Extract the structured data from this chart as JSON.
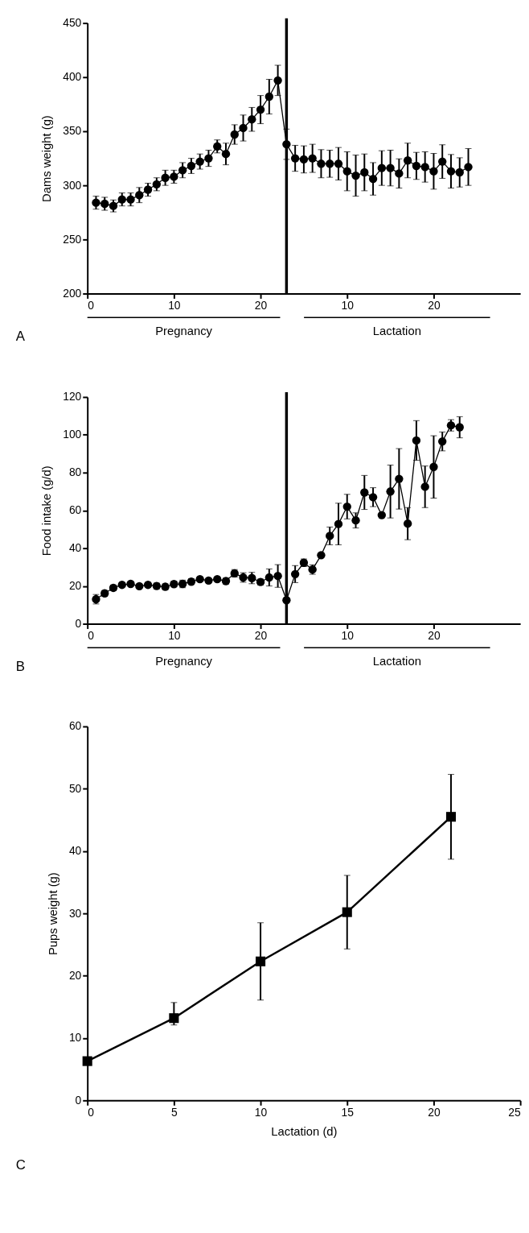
{
  "chart_data": [
    {
      "type": "line",
      "ylabel": "Dams weight (g)",
      "annotations": [
        "Pregnancy",
        "Lactation",
        "A"
      ],
      "x": [
        1,
        2,
        3,
        4,
        5,
        6,
        7,
        8,
        9,
        10,
        11,
        12,
        13,
        14,
        15,
        16,
        17,
        18,
        19,
        20,
        21,
        22,
        23,
        24,
        25,
        26,
        27,
        28,
        29,
        30,
        31,
        32,
        33,
        34,
        35,
        36,
        37,
        38,
        39,
        40,
        41,
        42,
        43,
        44
      ],
      "series": [
        {
          "color": "#000000",
          "values": [
            284,
            283,
            281,
            287,
            287,
            291,
            296,
            301,
            307,
            308,
            314,
            318,
            322,
            325,
            336,
            329,
            347,
            353,
            361,
            370,
            382,
            397,
            338,
            325,
            324,
            325,
            320,
            320,
            320,
            313,
            309,
            312,
            306,
            316,
            316,
            311,
            323,
            318,
            317,
            313,
            322,
            313,
            312,
            317
          ],
          "errors": [
            6,
            6,
            5.5,
            6,
            6,
            7,
            6,
            6,
            7,
            6,
            7,
            7,
            7,
            7.5,
            6,
            10,
            9,
            12,
            11,
            13,
            16,
            14,
            14,
            12,
            12.5,
            13,
            13,
            12.5,
            15,
            18,
            19,
            17,
            15,
            16,
            16.5,
            13.5,
            16,
            12.5,
            14,
            16.5,
            15.5,
            15.5,
            13.5,
            17
          ]
        }
      ],
      "xlim": [
        0,
        50
      ],
      "xticks": [
        0,
        10,
        20
      ],
      "x2lim": [
        -20,
        30
      ],
      "x2ticks": [
        10,
        20
      ],
      "ylim": [
        200,
        450
      ],
      "yticks": [
        200,
        250,
        300,
        350,
        400,
        450
      ],
      "ref_lines": [
        {
          "axis": "x",
          "value": 23,
          "color": "#000000"
        }
      ],
      "marker": "circle",
      "line_style": "solid",
      "grid": false
    },
    {
      "type": "line",
      "ylabel": "Food intake (g/d)",
      "annotations": [
        "Pregnancy",
        "Lactation",
        "B"
      ],
      "x": [
        1,
        2,
        3,
        4,
        5,
        6,
        7,
        8,
        9,
        10,
        11,
        12,
        13,
        14,
        15,
        16,
        17,
        18,
        19,
        20,
        21,
        22,
        23,
        24,
        25,
        26,
        27,
        28,
        29,
        30,
        31,
        32,
        33,
        34,
        35,
        36,
        37,
        38,
        39,
        40,
        41,
        42,
        43
      ],
      "series": [
        {
          "color": "#000000",
          "values": [
            13,
            16.1,
            19,
            20.6,
            21.1,
            19.9,
            20.6,
            20,
            19.6,
            21,
            21.1,
            22.3,
            23.6,
            22.9,
            23.6,
            22.6,
            26.7,
            24.5,
            24.2,
            22.1,
            24.5,
            25.3,
            12.5,
            26.3,
            32.3,
            28.7,
            36.3,
            46.5,
            52.8,
            62,
            54.7,
            69.5,
            67,
            57.5,
            70,
            76.7,
            53,
            97,
            72.5,
            83,
            96.5,
            105,
            104
          ],
          "errors": [
            2.5,
            1.5,
            1.5,
            1,
            1,
            1,
            1,
            1.5,
            1.5,
            1.5,
            2,
            1.5,
            1,
            1,
            1,
            1.5,
            2,
            2.5,
            3,
            1.5,
            4.5,
            6,
            null,
            4.5,
            2,
            2.5,
            null,
            4.7,
            11,
            6.5,
            4,
            9,
            5,
            null,
            14,
            16,
            8.5,
            10.5,
            11,
            16.5,
            5,
            3,
            5.6
          ]
        }
      ],
      "xlim": [
        0,
        50
      ],
      "xticks": [
        0,
        10,
        20
      ],
      "x2lim": [
        -20,
        30
      ],
      "x2ticks": [
        10,
        20
      ],
      "ylim": [
        0,
        120
      ],
      "yticks": [
        0,
        20,
        40,
        60,
        80,
        100,
        120
      ],
      "ref_lines": [
        {
          "axis": "x",
          "value": 23,
          "color": "#000000"
        }
      ],
      "marker": "circle",
      "line_style": "solid",
      "grid": false
    },
    {
      "type": "line",
      "ylabel": "Pups weight (g)",
      "xlabel": "Lactation (d)",
      "annotations": [
        "C"
      ],
      "x": [
        0,
        5,
        10,
        15,
        21
      ],
      "series": [
        {
          "color": "#000000",
          "values": [
            6.3,
            13.2,
            22.3,
            30.2,
            45.5
          ],
          "errors": [
            null,
            [
              12.1,
              15.7
            ],
            6.2,
            5.9,
            6.8
          ]
        }
      ],
      "xlim": [
        0,
        25
      ],
      "xticks": [
        0,
        5,
        10,
        15,
        20,
        25
      ],
      "ylim": [
        0,
        60
      ],
      "yticks": [
        0,
        10,
        20,
        30,
        40,
        50,
        60
      ],
      "marker": "square",
      "line_style": "solid",
      "grid": false
    }
  ]
}
